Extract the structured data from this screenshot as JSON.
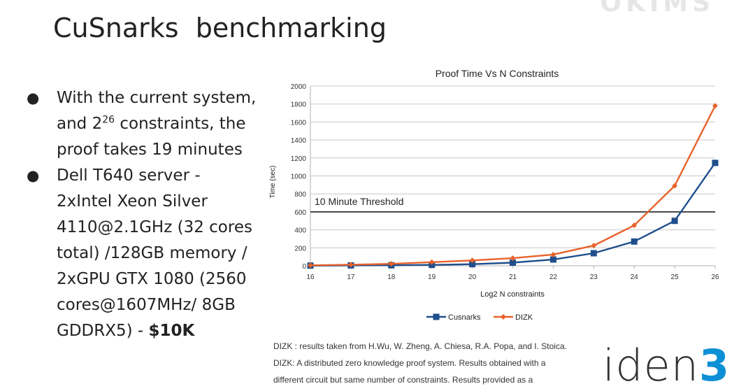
{
  "brand_mark": "OKIMS",
  "slide_title": "CuSnarks  benchmarking",
  "bullets": {
    "b1_pre": "With the current system, and 2",
    "b1_sup": "26",
    "b1_post": " constraints, the proof takes 19 minutes",
    "b2_text": "Dell T640 server - 2xIntel Xeon Silver 4110@2.1GHz  (32 cores total) /128GB memory / 2xGPU GTX 1080 (2560 cores@1607MHz/ 8GB GDDRX5) - ",
    "b2_bold": "$10K"
  },
  "chart_data": {
    "type": "line",
    "title": "Proof Time Vs N Constraints",
    "xlabel": "Log2 N constraints",
    "ylabel": "Time (sec)",
    "x": [
      16,
      17,
      18,
      19,
      20,
      21,
      22,
      23,
      24,
      25,
      26
    ],
    "ylim": [
      0,
      2000
    ],
    "yticks": [
      0,
      200,
      400,
      600,
      800,
      1000,
      1200,
      1400,
      1600,
      1800,
      2000
    ],
    "series": [
      {
        "name": "Cusnarks",
        "color": "#1f4e8c",
        "marker": "square",
        "values": [
          2,
          4,
          6,
          10,
          18,
          35,
          70,
          140,
          270,
          500,
          1145
        ]
      },
      {
        "name": "DIZK",
        "color": "#e8622c",
        "marker": "diamond",
        "values": [
          5,
          12,
          22,
          40,
          60,
          85,
          125,
          225,
          450,
          890,
          1780
        ]
      }
    ],
    "threshold": {
      "value": 600,
      "label": "10 Minute Threshold"
    },
    "grid": "horizontal",
    "legend": "bottom"
  },
  "footnote": [
    "DIZK : results taken from H.Wu, W. Zheng, A. Chiesa, R.A. Popa, and I. Stoica.",
    "DIZK: A distributed zero knowledge proof system. Results obtained with a",
    "different circuit but same number of constraints. Results provided as a"
  ],
  "logo": {
    "text": "iden",
    "suffix": "3"
  }
}
